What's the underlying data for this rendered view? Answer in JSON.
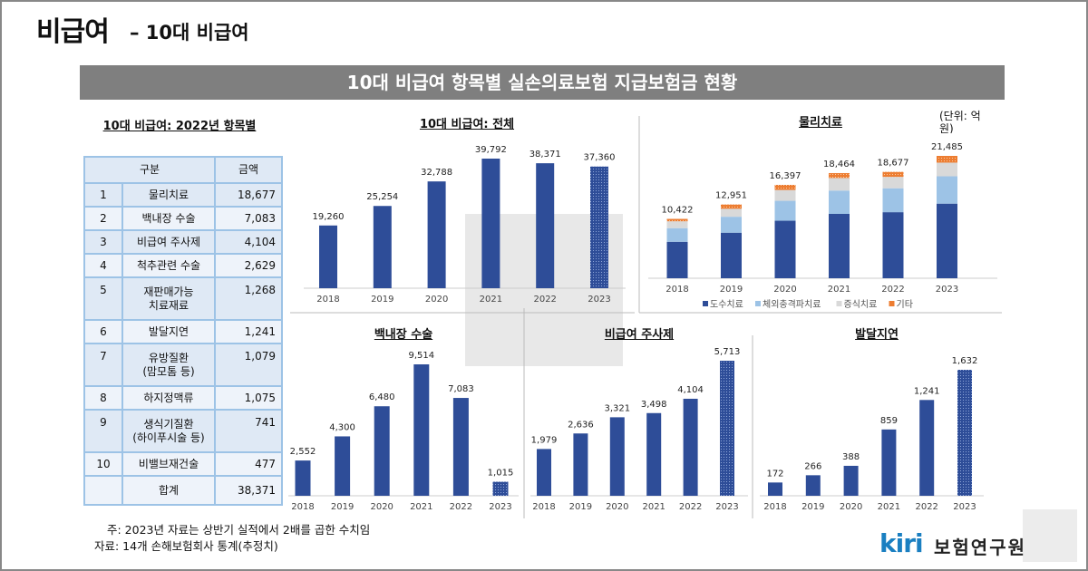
{
  "header": {
    "title": "비급여",
    "subtitle": "– 10대 비급여"
  },
  "banner": "10대 비급여 항목별 실손의료보험 지급보험금 현황",
  "table": {
    "title": "10대 비급여: 2022년 항목별",
    "headers": [
      "구분",
      "금액"
    ],
    "rows": [
      {
        "no": "1",
        "name": "물리치료",
        "amount": "18,677"
      },
      {
        "no": "2",
        "name": "백내장 수술",
        "amount": "7,083"
      },
      {
        "no": "3",
        "name": "비급여 주사제",
        "amount": "4,104"
      },
      {
        "no": "4",
        "name": "척추관련 수술",
        "amount": "2,629"
      },
      {
        "no": "5",
        "name": "재판매가능 치료재료",
        "amount": "1,268"
      },
      {
        "no": "6",
        "name": "발달지연",
        "amount": "1,241"
      },
      {
        "no": "7",
        "name": "유방질환 (맘모톰 등)",
        "amount": "1,079"
      },
      {
        "no": "8",
        "name": "하지정맥류",
        "amount": "1,075"
      },
      {
        "no": "9",
        "name": "생식기질환 (하이푸시술 등)",
        "amount": "741"
      },
      {
        "no": "10",
        "name": "비밸브재건술",
        "amount": "477"
      }
    ],
    "total_label": "합계",
    "total": "38,371"
  },
  "unit": "(단위: 억원)",
  "footnotes": [
    "주: 2023년 자료는 상반기 실적에서 2배를 곱한 수치임",
    "자료: 14개 손해보험회사 통계(추정치)"
  ],
  "logo": {
    "text": "kiri",
    "org": "보험연구원"
  },
  "colors": {
    "bar": "#2e4d98",
    "series": [
      "#2e4d98",
      "#9dc3e6",
      "#d9d9d9",
      "#ed7d31"
    ],
    "banner": "#7f7f7f"
  },
  "chart_data": [
    {
      "type": "bar",
      "title": "10대 비급여: 전체",
      "categories": [
        "2018",
        "2019",
        "2020",
        "2021",
        "2022",
        "2023"
      ],
      "values": [
        19260,
        25254,
        32788,
        39792,
        38371,
        37360
      ],
      "labels": [
        "19,260",
        "25,254",
        "32,788",
        "39,792",
        "38,371",
        "37,360"
      ],
      "patterned_last": true
    },
    {
      "type": "bar",
      "stacked": true,
      "title": "물리치료",
      "categories": [
        "2018",
        "2019",
        "2020",
        "2021",
        "2022",
        "2023"
      ],
      "series": [
        {
          "name": "도수치료",
          "values": [
            6400,
            8000,
            10100,
            11300,
            11600,
            13100
          ]
        },
        {
          "name": "체외충격파치료",
          "values": [
            2400,
            2800,
            3500,
            4100,
            4200,
            4800
          ]
        },
        {
          "name": "증식치료",
          "values": [
            1200,
            1400,
            1900,
            2200,
            2000,
            2400
          ]
        },
        {
          "name": "기타",
          "values": [
            422,
            751,
            897,
            864,
            877,
            1185
          ]
        }
      ],
      "totals": [
        10422,
        12951,
        16397,
        18464,
        18677,
        21485
      ],
      "labels": [
        "10,422",
        "12,951",
        "16,397",
        "18,464",
        "18,677",
        "21,485"
      ],
      "legend": "bottom"
    },
    {
      "type": "bar",
      "title": "백내장 수술",
      "categories": [
        "2018",
        "2019",
        "2020",
        "2021",
        "2022",
        "2023"
      ],
      "values": [
        2552,
        4300,
        6480,
        9514,
        7083,
        1015
      ],
      "labels": [
        "2,552",
        "4,300",
        "6,480",
        "9,514",
        "7,083",
        "1,015"
      ],
      "patterned_last": true
    },
    {
      "type": "bar",
      "title": "비급여 주사제",
      "categories": [
        "2018",
        "2019",
        "2020",
        "2021",
        "2022",
        "2023"
      ],
      "values": [
        1979,
        2636,
        3321,
        3498,
        4104,
        5713
      ],
      "labels": [
        "1,979",
        "2,636",
        "3,321",
        "3,498",
        "4,104",
        "5,713"
      ],
      "patterned_last": true
    },
    {
      "type": "bar",
      "title": "발달지연",
      "categories": [
        "2018",
        "2019",
        "2020",
        "2021",
        "2022",
        "2023"
      ],
      "values": [
        172,
        266,
        388,
        859,
        1241,
        1632
      ],
      "labels": [
        "172",
        "266",
        "388",
        "859",
        "1,241",
        "1,632"
      ],
      "patterned_last": true
    }
  ]
}
